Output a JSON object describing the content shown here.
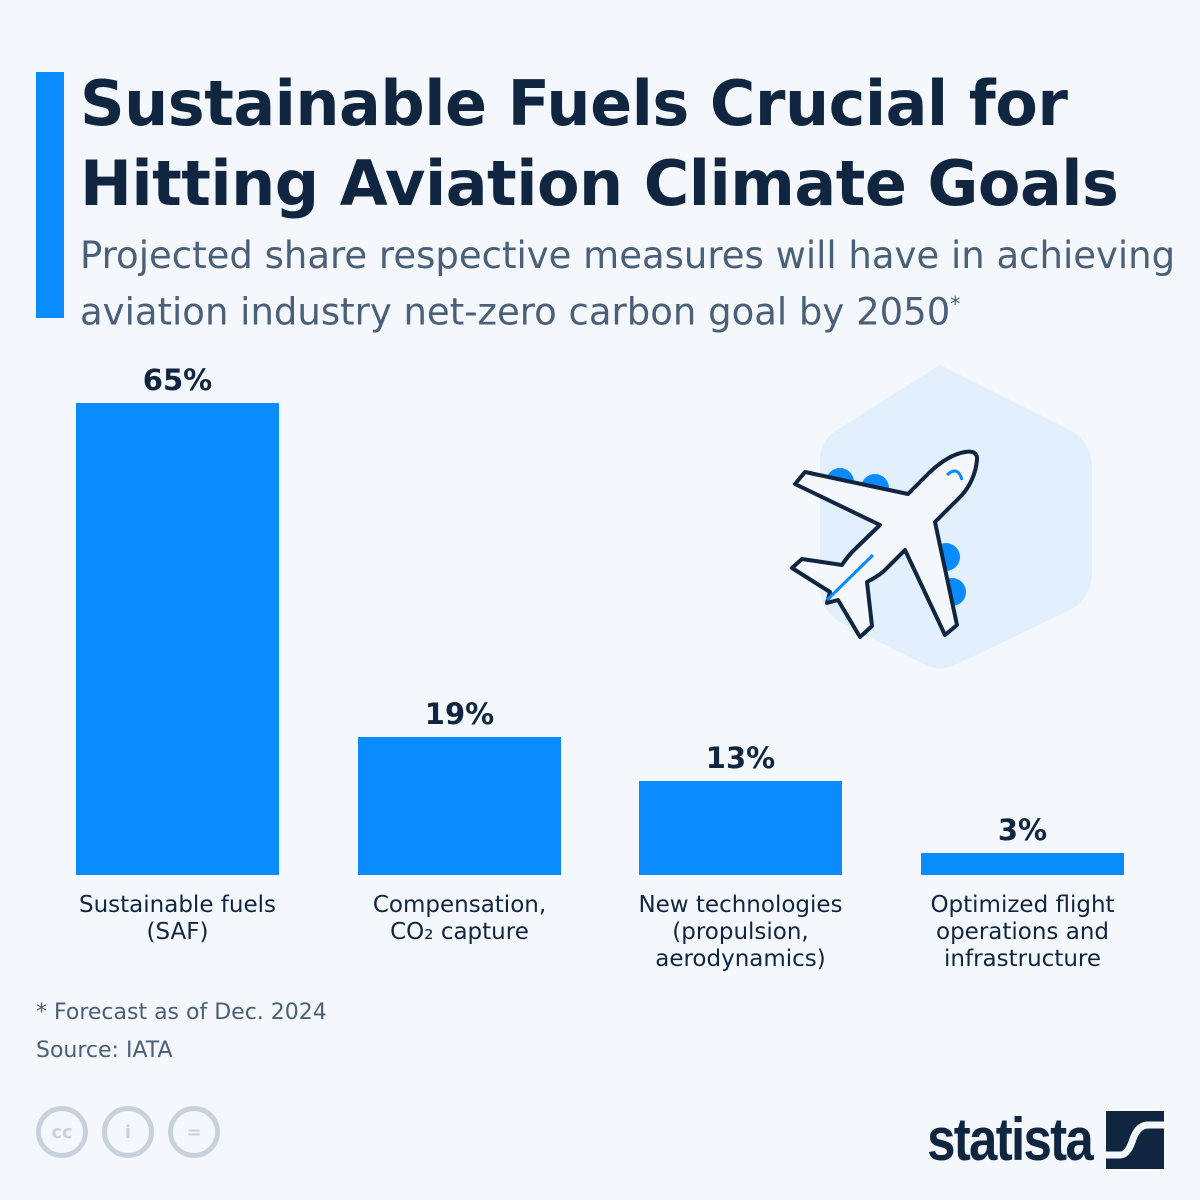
{
  "title": "Sustainable Fuels Crucial for Hitting Aviation Climate Goals",
  "subtitle": "Projected share respective measures will have in achieving aviation industry net-zero carbon goal by 2050",
  "subtitle_marker": "*",
  "chart_data": {
    "type": "bar",
    "categories": [
      "Sustainable fuels\n(SAF)",
      "Compensation,\nCO₂ capture",
      "New technologies\n(propulsion,\naerodynamics)",
      "Optimized flight\noperations and\ninfrastructure"
    ],
    "values": [
      65,
      19,
      13,
      3
    ],
    "labels": [
      "65%",
      "19%",
      "13%",
      "3%"
    ],
    "unit": "%",
    "bar_color": "#0a8cff",
    "grid": false
  },
  "footnote": "* Forecast as of Dec. 2024",
  "source": "Source: IATA",
  "license_icons": [
    "cc-icon",
    "attribution-icon",
    "no-derivatives-icon"
  ],
  "license_labels": [
    "cc",
    "i",
    "="
  ],
  "brand": "statista",
  "colors": {
    "accent": "#0a8cff",
    "text": "#0f2540",
    "background": "#f4f7fb"
  }
}
